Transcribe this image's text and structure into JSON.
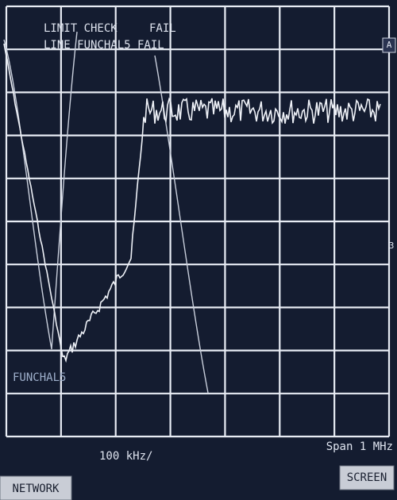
{
  "screen": {
    "status": {
      "limit_check": "LIMIT CHECK",
      "result": "FAIL",
      "line_status": "LINE FUNCHAL5 FAIL"
    },
    "trace_label": "FUNCHAL5",
    "side_marks": [
      "A",
      "3"
    ]
  },
  "footer": {
    "scale": "100 kHz/",
    "span": "Span 1 MHz"
  },
  "buttons": [
    "NETWORK",
    "SCREEN"
  ]
}
